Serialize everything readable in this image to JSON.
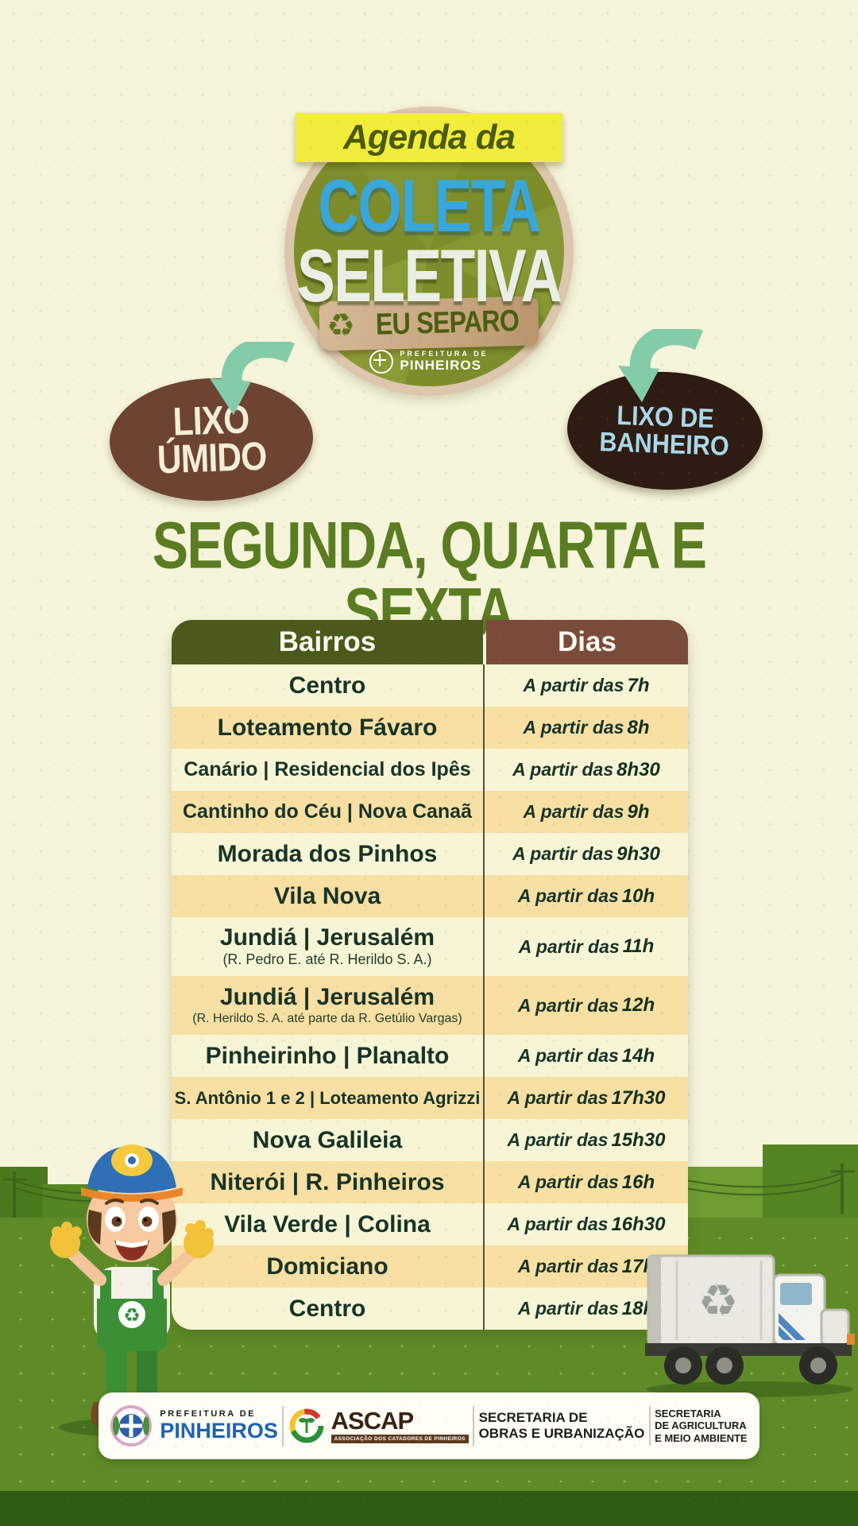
{
  "poster": {
    "banner": "Agenda da",
    "title": {
      "line1": "COLETA",
      "line2": "SELETIVA",
      "badge": "EU SEPARO"
    },
    "recycle_icon": "♻",
    "brand": {
      "small": "PREFEITURA DE",
      "name": "PINHEIROS"
    },
    "waste_labels": {
      "left": {
        "line1": "LIXO",
        "line2": "ÚMIDO"
      },
      "right": {
        "line1": "LIXO DE",
        "line2": "BANHEIRO"
      }
    },
    "days_heading": "SEGUNDA, QUARTA E SEXTA",
    "table": {
      "col_bairros": "Bairros",
      "col_dias": "Dias",
      "time_prefix": "A partir das",
      "rows": [
        {
          "bairro": "Centro",
          "time": "7h"
        },
        {
          "bairro": "Loteamento Fávaro",
          "time": "8h"
        },
        {
          "bairro": "Canário | Residencial dos Ipês",
          "time": "8h30"
        },
        {
          "bairro": "Cantinho do Céu | Nova Canaã",
          "time": "9h"
        },
        {
          "bairro": "Morada dos Pinhos",
          "time": "9h30"
        },
        {
          "bairro": "Vila Nova",
          "time": "10h"
        },
        {
          "bairro": "Jundiá | Jerusalém",
          "sub": "(R. Pedro E. até R. Herildo S. A.)",
          "time": "11h"
        },
        {
          "bairro": "Jundiá | Jerusalém",
          "sub": "(R. Herildo S. A. até parte da R. Getúlio Vargas)",
          "time": "12h"
        },
        {
          "bairro": "Pinheirinho | Planalto",
          "time": "14h"
        },
        {
          "bairro": "S. Antônio 1 e 2 | Loteamento Agrizzi",
          "time": "17h30"
        },
        {
          "bairro": "Nova Galileia",
          "time": "15h30"
        },
        {
          "bairro": "Niterói | R. Pinheiros",
          "time": "16h"
        },
        {
          "bairro": "Vila Verde | Colina",
          "time": "16h30"
        },
        {
          "bairro": "Domiciano",
          "time": "17h"
        },
        {
          "bairro": "Centro",
          "time": "18h"
        }
      ]
    },
    "footer": {
      "prefeitura": {
        "small": "PREFEITURA DE",
        "name": "PINHEIROS"
      },
      "ascap": {
        "name": "ASCAP",
        "sub": "ASSOCIAÇÃO DOS CATADORES DE PINHEIROS"
      },
      "obras": [
        "SECRETARIA DE",
        "OBRAS E URBANIZAÇÃO"
      ],
      "agricultura": [
        "SECRETARIA",
        "DE AGRICULTURA",
        "E MEIO AMBIENTE"
      ]
    },
    "colors": {
      "background": "#f6f4da",
      "banner_yellow": "#f2ec3d",
      "title_blue": "#39a7da",
      "circle_green": "#7d8d2c",
      "oval_brown": "#6c4431",
      "oval_dark": "#2e1c12",
      "arrow_teal": "#84cba9",
      "heading_green": "#5a7c22",
      "header_green": "#4b591b",
      "header_brown": "#7b4b3a",
      "row_cream": "#f7f5d5",
      "row_tan": "#f8dfa3",
      "row_text_green": "#173428",
      "grass_green": "#5e8b28"
    }
  }
}
